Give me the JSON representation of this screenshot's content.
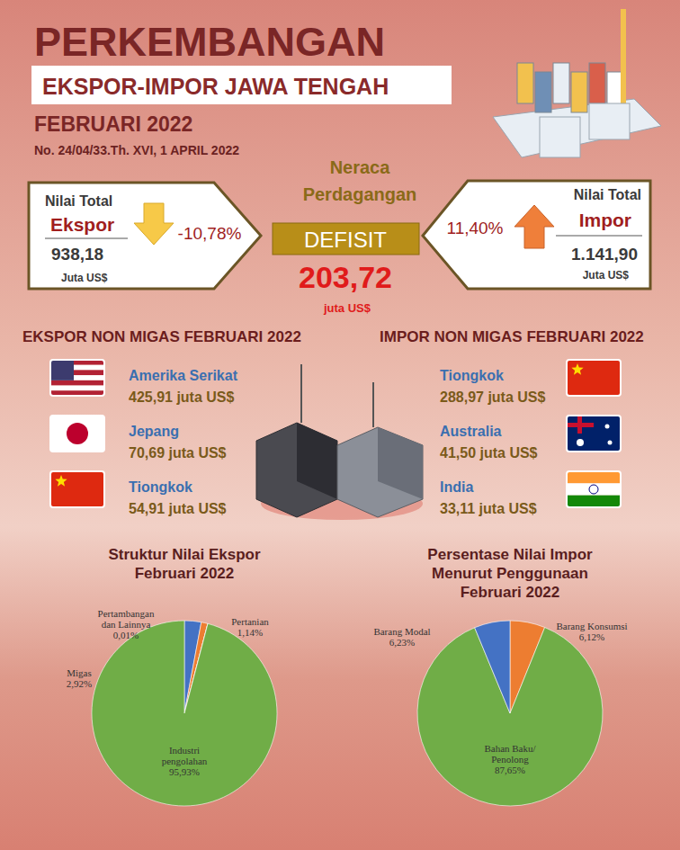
{
  "header": {
    "title": "PERKEMBANGAN",
    "subtitle": "EKSPOR-IMPOR JAWA TENGAH",
    "period": "FEBRUARI 2022",
    "number": "No. 24/04/33.Th. XVI, 1 APRIL 2022"
  },
  "export_total": {
    "label": "Nilai Total",
    "name": "Ekspor",
    "value": "938,18",
    "unit": "Juta US$",
    "change": "-10,78%"
  },
  "import_total": {
    "label": "Nilai Total",
    "name": "Impor",
    "value": "1.141,90",
    "unit": "Juta US$",
    "change": "11,40%"
  },
  "balance": {
    "title": "Neraca\nPerdagangan",
    "status": "DEFISIT",
    "value": "203,72",
    "unit": "juta US$"
  },
  "export_nonmigas": {
    "title": "EKSPOR NON MIGAS FEBRUARI 2022",
    "items": [
      {
        "country": "Amerika Serikat",
        "value": "425,91 juta US$"
      },
      {
        "country": "Jepang",
        "value": "70,69 juta US$"
      },
      {
        "country": "Tiongkok",
        "value": "54,91 juta US$"
      }
    ]
  },
  "import_nonmigas": {
    "title": "IMPOR NON MIGAS FEBRUARI 2022",
    "items": [
      {
        "country": "Tiongkok",
        "value": "288,97 juta US$"
      },
      {
        "country": "Australia",
        "value": "41,50 juta US$"
      },
      {
        "country": "India",
        "value": "33,11 juta US$"
      }
    ]
  },
  "chart_data": [
    {
      "type": "pie",
      "title": "Struktur Nilai Ekspor\nFebruari 2022",
      "categories": [
        "Migas",
        "Pertanian",
        "Pertambangan\ndan Lainnya",
        "Industri\npengolahan"
      ],
      "values": [
        2.92,
        1.14,
        0.01,
        95.93
      ],
      "value_labels": [
        "2,92%",
        "1,14%",
        "0,01%",
        "95,93%"
      ],
      "colors": [
        "#4472c4",
        "#ed7d31",
        "#a5a5a5",
        "#70ad47"
      ],
      "data_labels": true
    },
    {
      "type": "pie",
      "title": "Persentase Nilai Impor\nMenurut Penggunaan\nFebruari 2022",
      "categories": [
        "Barang Konsumsi",
        "Bahan Baku/\nPenolong",
        "Barang Modal"
      ],
      "values": [
        6.12,
        87.65,
        6.23
      ],
      "value_labels": [
        "6,12%",
        "87,65%",
        "6,23%"
      ],
      "colors": [
        "#ed7d31",
        "#70ad47",
        "#4472c4"
      ],
      "data_labels": true
    }
  ]
}
